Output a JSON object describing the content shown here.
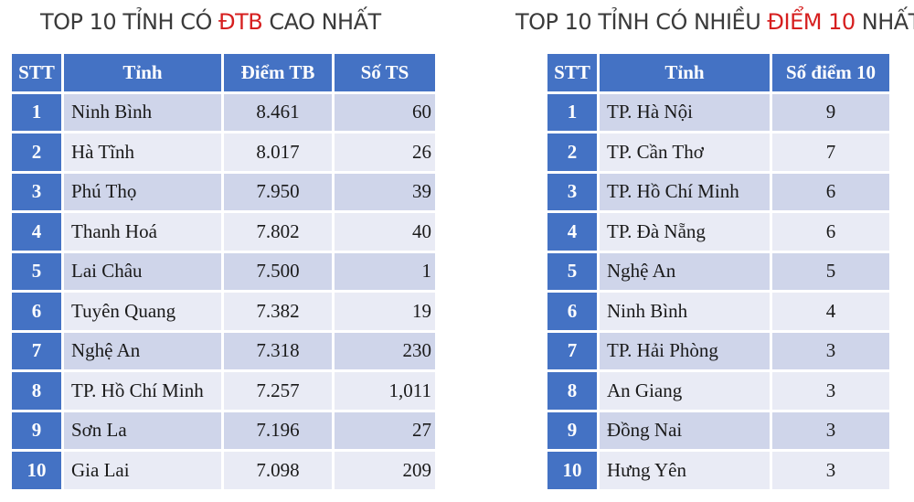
{
  "left": {
    "title_prefix": "TOP 10 TỈNH CÓ ",
    "title_highlight": "ĐTB",
    "title_suffix": " CAO NHẤT",
    "headers": [
      "STT",
      "Tỉnh",
      "Điểm TB",
      "Số TS"
    ],
    "rows": [
      {
        "stt": "1",
        "province": "Ninh Bình",
        "avg": "8.461",
        "count": "60"
      },
      {
        "stt": "2",
        "province": "Hà Tĩnh",
        "avg": "8.017",
        "count": "26"
      },
      {
        "stt": "3",
        "province": "Phú Thọ",
        "avg": "7.950",
        "count": "39"
      },
      {
        "stt": "4",
        "province": "Thanh Hoá",
        "avg": "7.802",
        "count": "40"
      },
      {
        "stt": "5",
        "province": "Lai Châu",
        "avg": "7.500",
        "count": "1"
      },
      {
        "stt": "6",
        "province": "Tuyên Quang",
        "avg": "7.382",
        "count": "19"
      },
      {
        "stt": "7",
        "province": "Nghệ An",
        "avg": "7.318",
        "count": "230"
      },
      {
        "stt": "8",
        "province": "TP. Hồ Chí Minh",
        "avg": "7.257",
        "count": "1,011"
      },
      {
        "stt": "9",
        "province": "Sơn La",
        "avg": "7.196",
        "count": "27"
      },
      {
        "stt": "10",
        "province": "Gia Lai",
        "avg": "7.098",
        "count": "209"
      }
    ]
  },
  "right": {
    "title_prefix": "TOP 10 TỈNH CÓ NHIỀU ",
    "title_highlight": "ĐIỂM 10",
    "title_suffix": " NHẤT",
    "headers": [
      "STT",
      "Tỉnh",
      "Số điểm 10"
    ],
    "rows": [
      {
        "stt": "1",
        "province": "TP. Hà Nội",
        "count": "9"
      },
      {
        "stt": "2",
        "province": "TP. Cần Thơ",
        "count": "7"
      },
      {
        "stt": "3",
        "province": "TP. Hồ Chí Minh",
        "count": "6"
      },
      {
        "stt": "4",
        "province": "TP. Đà Nẵng",
        "count": "6"
      },
      {
        "stt": "5",
        "province": "Nghệ An",
        "count": "5"
      },
      {
        "stt": "6",
        "province": "Ninh Bình",
        "count": "4"
      },
      {
        "stt": "7",
        "province": "TP. Hải Phòng",
        "count": "3"
      },
      {
        "stt": "8",
        "province": "An Giang",
        "count": "3"
      },
      {
        "stt": "9",
        "province": "Đồng Nai",
        "count": "3"
      },
      {
        "stt": "10",
        "province": "Hưng Yên",
        "count": "3"
      }
    ]
  }
}
